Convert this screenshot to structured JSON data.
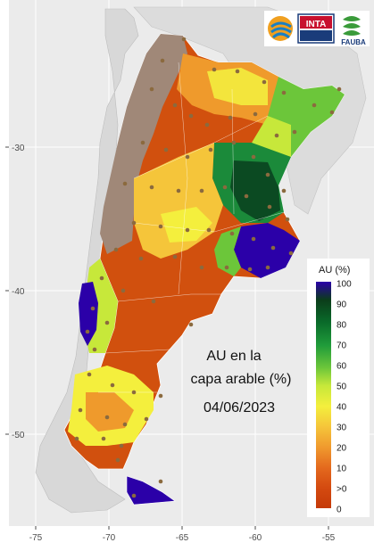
{
  "map": {
    "annotation": {
      "line1": "AU en la",
      "line2": "capa arable (%)",
      "date": "04/06/2023"
    },
    "x_axis": {
      "ticks": [
        {
          "value": -75,
          "label": "-75"
        },
        {
          "value": -70,
          "label": "-70"
        },
        {
          "value": -65,
          "label": "-65"
        },
        {
          "value": -60,
          "label": "-60"
        },
        {
          "value": -55,
          "label": "-55"
        }
      ]
    },
    "y_axis": {
      "ticks": [
        {
          "value": -30,
          "label": "-30"
        },
        {
          "value": -40,
          "label": "-40"
        },
        {
          "value": -50,
          "label": "-50"
        }
      ]
    },
    "legend": {
      "title": "AU (%)",
      "placement": "bottom-right",
      "labels": [
        "100",
        "90",
        "80",
        "70",
        "60",
        "50",
        "40",
        "30",
        "20",
        "10",
        ">0",
        "0"
      ],
      "colors": [
        "#2b00a8",
        "#0b3d1a",
        "#0a6b2a",
        "#1f9b3a",
        "#6cc63a",
        "#c7e83a",
        "#f4ef3d",
        "#f5c53a",
        "#f09a2e",
        "#e46a1e",
        "#d44a10",
        "#c53a08"
      ]
    },
    "colors": {
      "background": "#ebebeb",
      "bare_soil": "#a08878",
      "very_dry": "#d1500e",
      "dry": "#ef9a2c",
      "moderate": "#f3e53c",
      "wet": "#1b8a3a",
      "very_wet": "#0b4a22",
      "saturated": "#2b00a8",
      "border": "#ffffff",
      "station_dot": "#8b6a3e"
    },
    "logos": {
      "inta": "INTA",
      "fauba": "FAUBA"
    }
  }
}
